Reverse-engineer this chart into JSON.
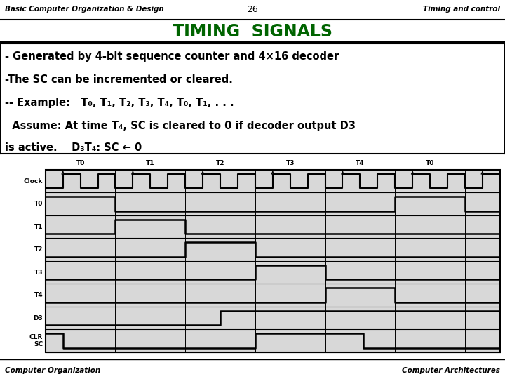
{
  "title": "TIMING  SIGNALS",
  "title_color": "#006400",
  "header_left": "Basic Computer Organization & Design",
  "header_center": "26",
  "header_right": "Timing and control",
  "footer_left": "Computer Organization",
  "footer_right": "Computer Architectures",
  "bg_color": "#ffffff",
  "text_color": "#000000",
  "signals": [
    "Clock",
    "T0",
    "T1",
    "T2",
    "T3",
    "T4",
    "D3",
    "CLR\nSC"
  ],
  "time_labels": [
    "T0",
    "T1",
    "T2",
    "T3",
    "T4",
    "T0"
  ],
  "n_periods": 6,
  "diag_bg": "#d8d8d8"
}
